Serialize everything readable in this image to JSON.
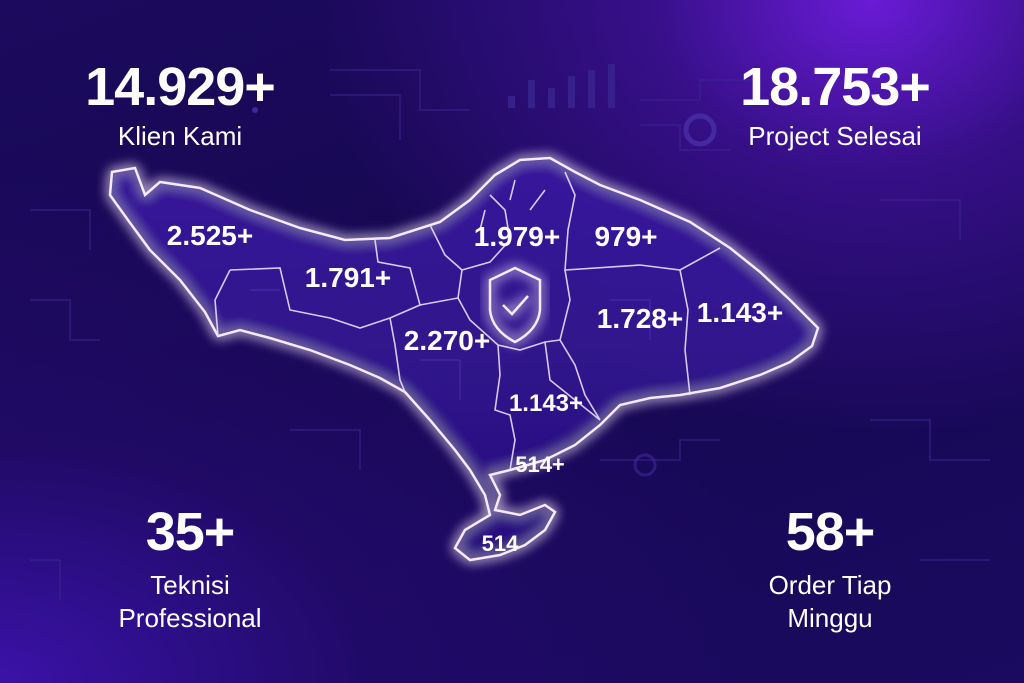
{
  "stats": {
    "klien": {
      "value": "14.929+",
      "label": "Klien Kami"
    },
    "project": {
      "value": "18.753+",
      "label": "Project Selesai"
    },
    "teknisi": {
      "value": "35+",
      "label_line1": "Teknisi",
      "label_line2": "Professional"
    },
    "order": {
      "value": "58+",
      "label_line1": "Order Tiap",
      "label_line2": "Minggu"
    }
  },
  "map": {
    "regions": [
      {
        "id": "region-1",
        "label": "2.525+"
      },
      {
        "id": "region-2",
        "label": "1.791+"
      },
      {
        "id": "region-3",
        "label": "1.979+"
      },
      {
        "id": "region-4",
        "label": "979+"
      },
      {
        "id": "region-5",
        "label": "2.270+"
      },
      {
        "id": "region-6",
        "label": "1.728+"
      },
      {
        "id": "region-7",
        "label": "1.143+"
      },
      {
        "id": "region-8",
        "label": "1.143+"
      },
      {
        "id": "region-9",
        "label": "514+"
      },
      {
        "id": "region-10",
        "label": "514"
      }
    ],
    "center_icon": "shield-check-icon"
  },
  "colors": {
    "background_dark": "#160850",
    "accent_glow": "#9b4dff",
    "outline": "#f3e8ff",
    "text": "#ffffff"
  }
}
